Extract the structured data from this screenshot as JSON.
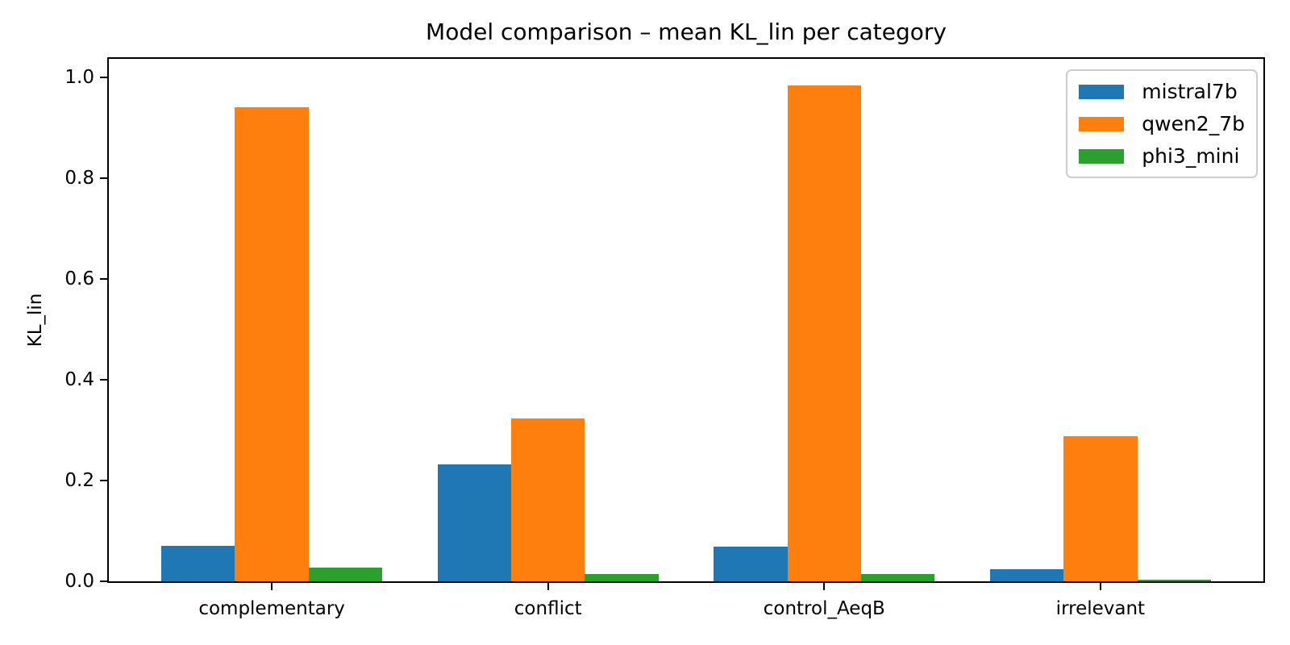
{
  "chart_data": {
    "type": "bar",
    "title": "Model comparison – mean KL_lin per category",
    "xlabel": "",
    "ylabel": "KL_lin",
    "categories": [
      "complementary",
      "conflict",
      "control_AeqB",
      "irrelevant"
    ],
    "series": [
      {
        "name": "mistral7b",
        "color": "#1f77b4",
        "values": [
          0.071,
          0.232,
          0.069,
          0.024
        ]
      },
      {
        "name": "qwen2_7b",
        "color": "#ff7f0e",
        "values": [
          0.941,
          0.323,
          0.984,
          0.288
        ]
      },
      {
        "name": "phi3_mini",
        "color": "#2ca02c",
        "values": [
          0.027,
          0.014,
          0.014,
          0.003
        ]
      }
    ],
    "ylim": [
      0,
      1.037
    ],
    "xlim": [
      -0.59,
      3.59
    ],
    "yticks": [
      0.0,
      0.2,
      0.4,
      0.6,
      0.8,
      1.0
    ],
    "ytick_labels": [
      "0.0",
      "0.2",
      "0.4",
      "0.6",
      "0.8",
      "1.0"
    ],
    "bar_width": 0.267,
    "grid": false,
    "background": "#ffffff",
    "spine_color": "#000000",
    "legend": {
      "position": "upper right",
      "entries": [
        "mistral7b",
        "qwen2_7b",
        "phi3_mini"
      ]
    }
  }
}
